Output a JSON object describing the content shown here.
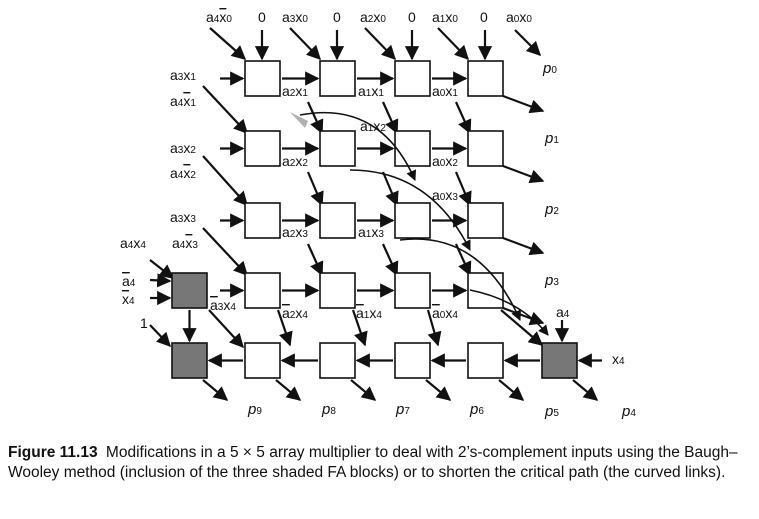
{
  "caption": {
    "figure_label": "Figure 11.13",
    "text": "Modifications in a 5 × 5 array multiplier to deal with 2’s-complement inputs using the Baugh–Wooley method (inclusion of the three shaded FA blocks) or to shorten the critical path (the curved links)."
  },
  "diagram": {
    "top_inputs": [
      {
        "a": "4",
        "x": "0",
        "bar_x": true
      },
      {
        "const": "0"
      },
      {
        "a": "3",
        "x": "0"
      },
      {
        "const": "0"
      },
      {
        "a": "2",
        "x": "0"
      },
      {
        "const": "0"
      },
      {
        "a": "1",
        "x": "0"
      },
      {
        "const": "0"
      },
      {
        "a": "0",
        "x": "0"
      }
    ],
    "left_inputs": [
      {
        "a": "3",
        "x": "1"
      },
      {
        "a": "4",
        "x": "1",
        "bar_x": true
      },
      {
        "a": "3",
        "x": "2"
      },
      {
        "a": "4",
        "x": "2",
        "bar_x": true
      },
      {
        "a": "3",
        "x": "3"
      },
      {
        "a": "4",
        "x": "4"
      },
      {
        "a": "4",
        "x": "3",
        "bar_x": true
      }
    ],
    "shaded_inputs": [
      {
        "a": "4",
        "bar_a": true
      },
      {
        "x": "4",
        "bar_x": true
      },
      {
        "const": "1"
      }
    ],
    "inner_labels": [
      {
        "a": "2",
        "x": "1"
      },
      {
        "a": "1",
        "x": "1"
      },
      {
        "a": "0",
        "x": "1"
      },
      {
        "a": "1",
        "x": "2"
      },
      {
        "a": "2",
        "x": "2"
      },
      {
        "a": "0",
        "x": "2"
      },
      {
        "a": "0",
        "x": "3"
      },
      {
        "a": "2",
        "x": "3"
      },
      {
        "a": "1",
        "x": "3"
      },
      {
        "a": "3",
        "x": "4",
        "bar_a": true
      },
      {
        "a": "2",
        "x": "4",
        "bar_a": true
      },
      {
        "a": "1",
        "x": "4",
        "bar_a": true
      },
      {
        "a": "0",
        "x": "4",
        "bar_a": true
      }
    ],
    "corner_inputs": [
      {
        "a": "4"
      },
      {
        "x": "4"
      }
    ],
    "outputs": [
      {
        "p": "0"
      },
      {
        "p": "1"
      },
      {
        "p": "2"
      },
      {
        "p": "3"
      },
      {
        "p": "4"
      },
      {
        "p": "5"
      },
      {
        "p": "6"
      },
      {
        "p": "7"
      },
      {
        "p": "8"
      },
      {
        "p": "9"
      }
    ],
    "colors": {
      "shaded": "#777777",
      "stroke": "#111111",
      "highlight": "#b0b0b0"
    }
  }
}
